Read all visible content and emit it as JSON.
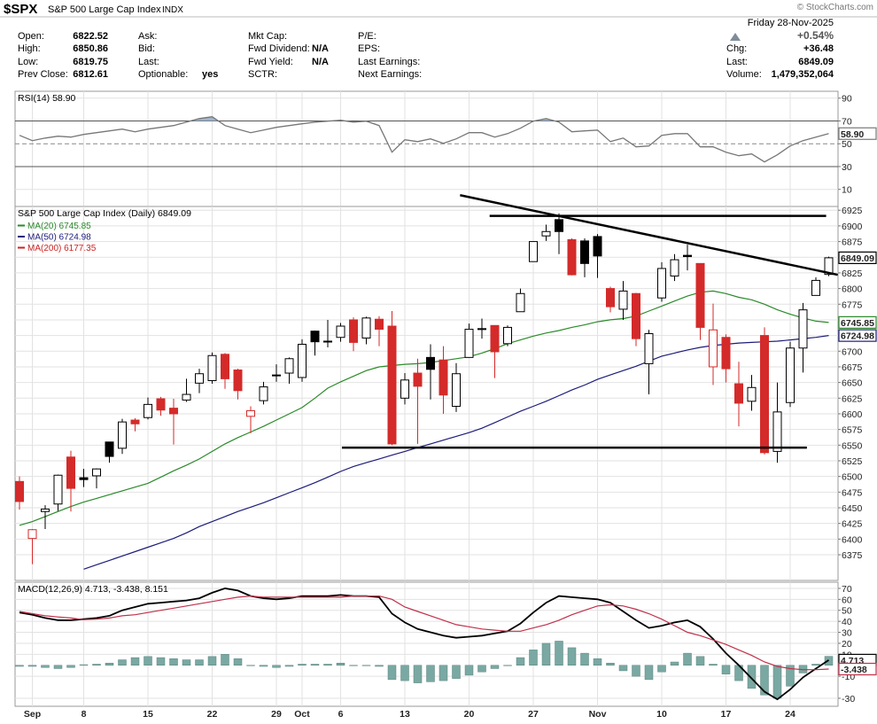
{
  "header": {
    "symbol": "$SPX",
    "name": "S&P 500 Large Cap Index",
    "exchange": "INDX",
    "copyright": "© StockCharts.com",
    "date": "Friday  28-Nov-2025",
    "change_pct": "+0.54%",
    "columns": [
      [
        {
          "label": "Open:",
          "value": "6822.52"
        },
        {
          "label": "High:",
          "value": "6850.86"
        },
        {
          "label": "Low:",
          "value": "6819.75"
        },
        {
          "label": "Prev Close:",
          "value": "6812.61"
        }
      ],
      [
        {
          "label": "Ask:"
        },
        {
          "label": "Bid:"
        },
        {
          "label": "Last:"
        },
        {
          "label": "Optionable:",
          "value": "yes"
        }
      ],
      [
        {
          "label": "Mkt Cap:"
        },
        {
          "label": "Fwd Dividend:",
          "value": "N/A"
        },
        {
          "label": "Fwd Yield:",
          "value": "N/A"
        },
        {
          "label": "SCTR:"
        }
      ],
      [
        {
          "label": "P/E:"
        },
        {
          "label": "EPS:"
        },
        {
          "label": "Last Earnings:"
        },
        {
          "label": "Next Earnings:"
        }
      ],
      [
        {
          "label": "Chg:",
          "value": "+36.48"
        },
        {
          "label": "Last:",
          "value": "6849.09"
        },
        {
          "label": "Volume:",
          "value": "1,479,352,064"
        }
      ]
    ]
  },
  "chart_data": [
    {
      "type": "line",
      "title": "RSI(14) 58.90",
      "color": "#777777",
      "fill_color": "#9fb4c8",
      "overbought": 70,
      "oversold": 30,
      "ylim": [
        -5,
        96
      ],
      "yticks": [
        90,
        70,
        50,
        30,
        10
      ],
      "grid": true,
      "values": [
        57.4,
        52.7,
        55.0,
        56.6,
        55.8,
        58.2,
        59.7,
        61.3,
        62.8,
        60.5,
        62.8,
        64.4,
        65.9,
        69.0,
        72.1,
        73.7,
        65.9,
        62.8,
        59.7,
        62.0,
        64.4,
        65.9,
        67.5,
        69.0,
        69.8,
        70.6,
        69.0,
        69.8,
        65.9,
        42.6,
        53.5,
        51.9,
        54.3,
        50.4,
        54.3,
        59.7,
        59.7,
        55.8,
        58.9,
        63.6,
        69.8,
        72.1,
        69.0,
        60.5,
        61.3,
        62.0,
        51.9,
        55.0,
        47.3,
        48.1,
        57.4,
        58.9,
        58.9,
        47.3,
        47.3,
        42.6,
        39.5,
        41.1,
        34.1,
        40.3,
        48.1,
        52.7,
        55.8,
        58.9
      ],
      "value_labels": [
        null,
        null,
        null,
        null,
        null,
        null,
        null,
        null,
        null,
        null,
        null,
        null,
        null,
        null,
        null,
        null,
        null,
        null,
        null,
        null,
        null,
        null,
        null,
        null,
        null,
        null,
        null,
        null,
        null,
        null,
        null,
        null,
        null,
        null,
        null,
        null,
        null,
        null,
        null,
        null,
        null,
        null,
        null,
        null,
        null,
        null,
        null,
        null,
        null,
        null,
        null,
        null,
        null,
        null,
        null,
        null,
        null,
        null,
        null,
        null,
        null,
        null,
        null,
        "58.90"
      ]
    },
    {
      "type": "candlestick",
      "title": "S&P 500 Large Cap Index (Daily) 6849.09",
      "rising_color": "#000000",
      "falling_color": "#d42a2a",
      "ylim": [
        6334,
        6931
      ],
      "yticks": [
        6375,
        6400,
        6425,
        6450,
        6475,
        6500,
        6525,
        6550,
        6575,
        6600,
        6625,
        6650,
        6675,
        6700,
        6725,
        6750,
        6775,
        6800,
        6825,
        6850,
        6875,
        6900,
        6925
      ],
      "grid": true,
      "categories": [
        null,
        "Sep",
        null,
        null,
        null,
        "8",
        null,
        null,
        null,
        null,
        "15",
        null,
        null,
        null,
        null,
        "22",
        null,
        null,
        null,
        null,
        "29",
        null,
        "Oct",
        null,
        null,
        "6",
        null,
        null,
        null,
        null,
        "13",
        null,
        null,
        null,
        null,
        "20",
        null,
        null,
        null,
        null,
        "27",
        null,
        null,
        null,
        null,
        "Nov",
        null,
        null,
        null,
        null,
        "10",
        null,
        null,
        null,
        null,
        "17",
        null,
        null,
        null,
        null,
        "24",
        null,
        null,
        null
      ],
      "open": [
        6492,
        6401,
        6444,
        6456,
        6531,
        6498,
        6501,
        6555,
        6545,
        6590,
        6594,
        6624,
        6609,
        6622,
        6649,
        6653,
        6695,
        6670,
        6596,
        6621,
        6662,
        6665,
        6658,
        6732,
        6715,
        6722,
        6750,
        6721,
        6751,
        6740,
        6625,
        6665,
        6690,
        6686,
        6612,
        6690,
        6736,
        6741,
        6712,
        6763,
        6843,
        6884,
        6910,
        6878,
        6876,
        6883,
        6800,
        6767,
        6792,
        6680,
        6785,
        6820,
        6853,
        6840,
        6675,
        6722,
        6648,
        6620,
        6725,
        6540,
        6618,
        6705,
        6789,
        6822.52
      ],
      "high": [
        6500,
        6416,
        6454,
        6503,
        6541,
        6512,
        6513,
        6555,
        6592,
        6593,
        6626,
        6627,
        6624,
        6656,
        6672,
        6698,
        6697,
        6672,
        6612,
        6651,
        6679,
        6690,
        6719,
        6733,
        6750,
        6745,
        6754,
        6755,
        6756,
        6764,
        6665,
        6688,
        6711,
        6708,
        6681,
        6744,
        6752,
        6741,
        6741,
        6800,
        6875,
        6902,
        6920,
        6880,
        6880,
        6887,
        6803,
        6812,
        6793,
        6734,
        6842,
        6855,
        6870,
        6840,
        6776,
        6727,
        6683,
        6662,
        6738,
        6650,
        6715,
        6777,
        6818,
        6850.86
      ],
      "low": [
        6447,
        6360,
        6416,
        6445,
        6444,
        6483,
        6481,
        6522,
        6536,
        6572,
        6591,
        6597,
        6551,
        6619,
        6633,
        6648,
        6640,
        6623,
        6569,
        6615,
        6651,
        6648,
        6651,
        6693,
        6706,
        6715,
        6700,
        6711,
        6708,
        6550,
        6615,
        6552,
        6623,
        6600,
        6603,
        6690,
        6720,
        6657,
        6708,
        6763,
        6843,
        6876,
        6855,
        6821,
        6818,
        6817,
        6762,
        6750,
        6708,
        6631,
        6779,
        6812,
        6829,
        6718,
        6646,
        6650,
        6580,
        6605,
        6535,
        6522,
        6611,
        6666,
        6789,
        6819.75
      ],
      "close": [
        6460,
        6415,
        6448,
        6502,
        6481,
        6495,
        6512,
        6532,
        6587,
        6584,
        6615,
        6606,
        6600,
        6631,
        6664,
        6693,
        6656,
        6637,
        6605,
        6643,
        6661,
        6688,
        6711,
        6715,
        6716,
        6740,
        6714,
        6753,
        6735,
        6552,
        6654,
        6644,
        6671,
        6630,
        6664,
        6735,
        6735,
        6699,
        6738,
        6792,
        6875,
        6891,
        6891,
        6822,
        6840,
        6852,
        6771,
        6796,
        6720,
        6728,
        6832,
        6846,
        6851,
        6738,
        6734,
        6672,
        6617,
        6642,
        6538,
        6603,
        6705,
        6766,
        6813,
        6849.09
      ],
      "series": [
        {
          "name": "MA(20) 6745.85",
          "color": "#2a8a2a",
          "values": [
            6422,
            6428,
            6436,
            6444,
            6452,
            6459,
            6465,
            6471,
            6477,
            6483,
            6489,
            6499,
            6509,
            6518,
            6528,
            6540,
            6552,
            6562,
            6571,
            6580,
            6590,
            6600,
            6610,
            6625,
            6641,
            6651,
            6660,
            6669,
            6675,
            6677,
            6679,
            6680,
            6682,
            6685,
            6688,
            6691,
            6697,
            6704,
            6712,
            6718,
            6724,
            6729,
            6733,
            6738,
            6742,
            6747,
            6750,
            6752,
            6756,
            6764,
            6772,
            6780,
            6788,
            6794,
            6796,
            6792,
            6786,
            6782,
            6775,
            6766,
            6759,
            6753,
            6748,
            6745.85
          ]
        },
        {
          "name": "MA(50) 6724.98",
          "color": "#1c1c7a",
          "values": [
            null,
            null,
            null,
            null,
            null,
            6352,
            6359,
            6366,
            6373,
            6380,
            6387,
            6394,
            6401,
            6410,
            6420,
            6428,
            6436,
            6444,
            6451,
            6458,
            6466,
            6474,
            6482,
            6490,
            6499,
            6508,
            6516,
            6522,
            6528,
            6534,
            6540,
            6546,
            6552,
            6558,
            6564,
            6570,
            6577,
            6586,
            6595,
            6604,
            6612,
            6620,
            6629,
            6638,
            6646,
            6655,
            6662,
            6669,
            6676,
            6684,
            6692,
            6697,
            6702,
            6706,
            6709,
            6711,
            6713,
            6714,
            6715,
            6716,
            6718,
            6720,
            6722,
            6724.98
          ]
        },
        {
          "name": "MA(200) 6177.35",
          "color": "#cc2222",
          "values": [
            null,
            null,
            null,
            null,
            null,
            null,
            null,
            null,
            null,
            null,
            null,
            null,
            null,
            null,
            null,
            null,
            null,
            null,
            null,
            null,
            null,
            null,
            null,
            null,
            null,
            null,
            null,
            null,
            null,
            null,
            null,
            null,
            null,
            null,
            null,
            null,
            null,
            null,
            null,
            null,
            null,
            null,
            null,
            null,
            null,
            null,
            null,
            null,
            null,
            null,
            null,
            null,
            null,
            null,
            null,
            null,
            null,
            null,
            null,
            null,
            null,
            null,
            null,
            null
          ]
        }
      ],
      "trendlines": [
        {
          "x": [
            36.6,
            62.8
          ],
          "y": [
            6916,
            6916
          ]
        },
        {
          "x": [
            25.1,
            61.3
          ],
          "y": [
            6546,
            6546
          ]
        },
        {
          "x": [
            34.3,
            63.7
          ],
          "y": [
            6949,
            6822
          ]
        }
      ]
    },
    {
      "type": "macd",
      "title": "MACD(12,26,9) 4.713, -3.438, 8.151",
      "ylim": [
        -37.3,
        75.6
      ],
      "yticks": [
        70,
        60,
        50,
        40,
        30,
        20,
        10,
        -10,
        -30
      ],
      "grid": true,
      "categories": [
        null,
        "Sep",
        null,
        null,
        null,
        "8",
        null,
        null,
        null,
        null,
        "15",
        null,
        null,
        null,
        null,
        "22",
        null,
        null,
        null,
        null,
        "29",
        null,
        "Oct",
        null,
        null,
        "6",
        null,
        null,
        null,
        null,
        "13",
        null,
        null,
        null,
        null,
        "20",
        null,
        null,
        null,
        null,
        "27",
        null,
        null,
        null,
        null,
        "Nov",
        null,
        null,
        null,
        null,
        "10",
        null,
        null,
        null,
        null,
        "17",
        null,
        null,
        null,
        null,
        "24",
        null,
        null,
        null
      ],
      "series": [
        {
          "color": "#000000",
          "values": [
            48,
            46,
            43,
            41,
            41,
            42,
            43,
            45,
            50,
            53,
            56,
            57,
            58,
            59,
            61,
            66,
            70,
            68,
            63,
            61,
            60,
            61,
            63,
            63,
            63,
            64,
            63,
            63,
            62,
            47,
            39,
            33,
            30,
            27,
            25,
            26,
            27,
            29,
            31,
            38,
            48,
            57,
            63,
            62,
            61,
            60,
            57,
            49,
            41,
            34,
            36,
            39,
            41,
            35,
            24,
            11,
            0,
            -12,
            -24,
            -31,
            -22,
            -11,
            -3,
            4.713
          ]
        },
        {
          "color": "#c0304a",
          "values": [
            49,
            47,
            45,
            44,
            43,
            41.5,
            42,
            43,
            45,
            46,
            48,
            50,
            52,
            54,
            56,
            58,
            60,
            62,
            63,
            62,
            62,
            62,
            62,
            62,
            62,
            62,
            63,
            63,
            63,
            60,
            53,
            49,
            45,
            41,
            37,
            35,
            33,
            32,
            31,
            31,
            34,
            37,
            41,
            46,
            50,
            54,
            55,
            54,
            51,
            47,
            42,
            36,
            30,
            27,
            23,
            19,
            14,
            9,
            3,
            -1,
            -3,
            -4,
            -4,
            -3.438
          ]
        }
      ],
      "histogram": {
        "color": "#7aa8a2",
        "values": [
          -1,
          -1,
          -2,
          -3,
          -2,
          0.5,
          1,
          2,
          5,
          7,
          8,
          7,
          6,
          5,
          5,
          8,
          10,
          6,
          0,
          -1,
          -2,
          -1,
          1,
          1,
          1,
          2,
          0,
          0,
          -1,
          -13,
          -14,
          -16,
          -15,
          -14,
          -12,
          -9,
          -6,
          -3,
          0,
          7,
          14,
          20,
          22,
          16,
          11,
          6,
          2,
          -5,
          -10,
          -13,
          -6,
          3,
          11,
          8,
          1,
          -8,
          -14,
          -21,
          -27,
          -30,
          -19,
          -7,
          1,
          8.151
        ]
      }
    }
  ]
}
